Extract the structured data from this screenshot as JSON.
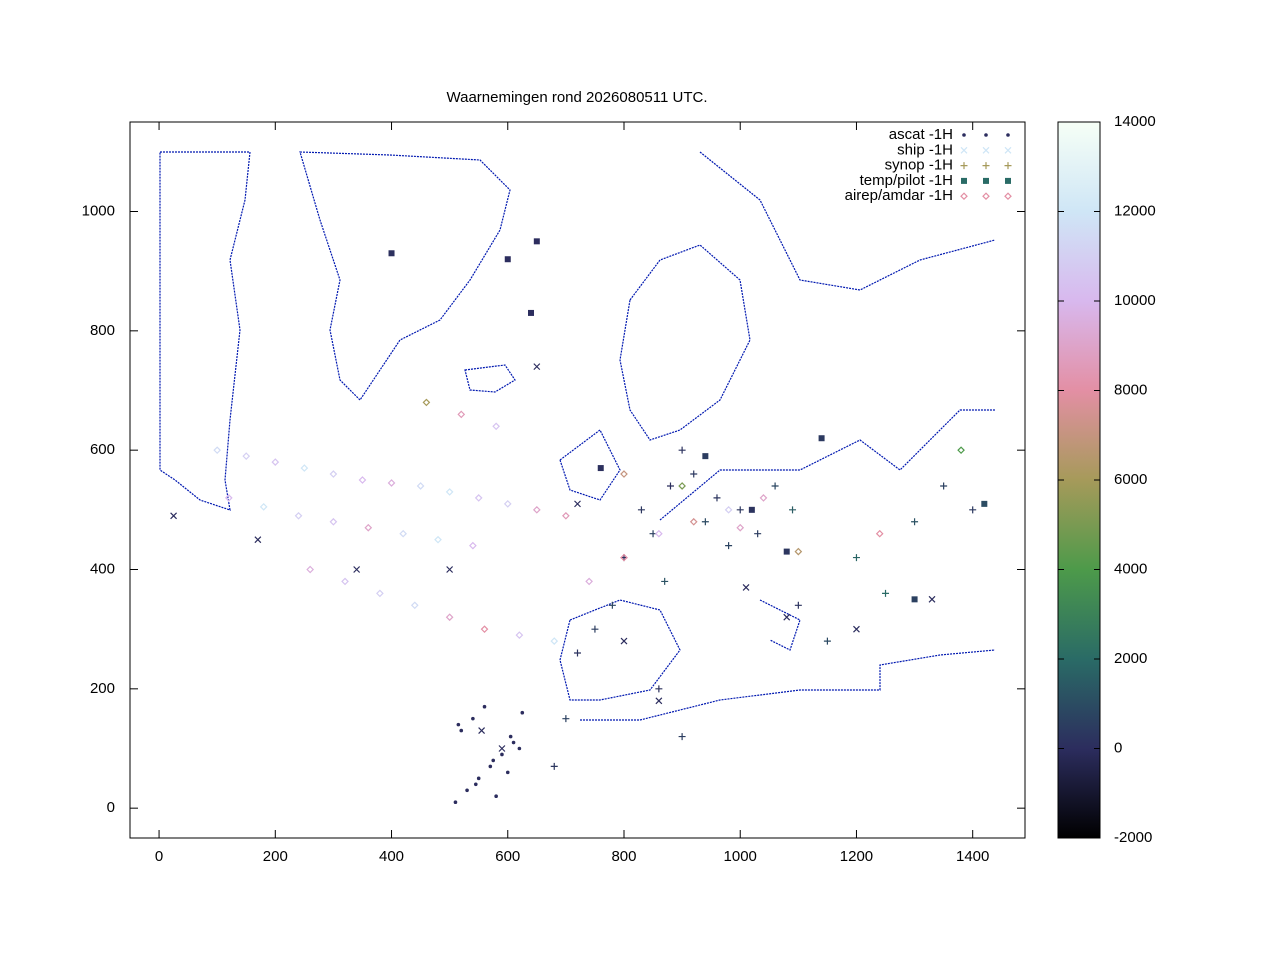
{
  "chart_data": {
    "type": "scatter",
    "title": "Waarnemingen rond 2026080511 UTC.",
    "xlim": [
      -50,
      1490
    ],
    "ylim": [
      -50,
      1150
    ],
    "xticks": [
      0,
      200,
      400,
      600,
      800,
      1000,
      1200,
      1400
    ],
    "yticks": [
      0,
      200,
      400,
      600,
      800,
      1000
    ],
    "cblim": [
      -2000,
      14000
    ],
    "cbticks": [
      -2000,
      0,
      2000,
      4000,
      6000,
      8000,
      10000,
      12000,
      14000
    ],
    "colormap": [
      "#000000",
      "#2c2d5e",
      "#2a6b66",
      "#4d9a4a",
      "#a69a5a",
      "#e38fa4",
      "#d8b8ee",
      "#cfe6f6",
      "#f6fff6"
    ],
    "legend": "upper right",
    "series": [
      {
        "name": "ascat -1H",
        "marker": "dot",
        "color": "#2c2d5e",
        "x": [
          510,
          530,
          550,
          570,
          590,
          610,
          520,
          540,
          560,
          580,
          600,
          620,
          515,
          545,
          575,
          605,
          625
        ],
        "y": [
          10,
          30,
          50,
          70,
          90,
          110,
          130,
          150,
          170,
          20,
          60,
          100,
          140,
          40,
          80,
          120,
          160
        ],
        "z": [
          0,
          0,
          0,
          0,
          0,
          0,
          0,
          0,
          0,
          0,
          0,
          0,
          0,
          0,
          0,
          0,
          0
        ]
      },
      {
        "name": "ship -1H",
        "marker": "cross",
        "color": "#cfe6f6",
        "x": [
          25,
          170,
          340,
          500,
          555,
          590,
          650,
          720,
          800,
          860,
          1010,
          1080,
          1200,
          1330
        ],
        "y": [
          490,
          450,
          400,
          400,
          130,
          100,
          740,
          510,
          280,
          180,
          370,
          320,
          300,
          350
        ],
        "z": [
          0,
          0,
          0,
          0,
          0,
          0,
          0,
          0,
          0,
          0,
          0,
          0,
          0,
          0
        ]
      },
      {
        "name": "synop -1H",
        "marker": "plus",
        "color": "#a69a5a",
        "x": [
          720,
          750,
          780,
          800,
          830,
          850,
          870,
          880,
          900,
          920,
          940,
          960,
          980,
          1000,
          1030,
          1060,
          1090,
          1100,
          1150,
          1200,
          1250,
          1300,
          1350,
          1400,
          680,
          700,
          860,
          900
        ],
        "y": [
          260,
          300,
          340,
          420,
          500,
          460,
          380,
          540,
          600,
          560,
          480,
          520,
          440,
          500,
          460,
          540,
          500,
          340,
          280,
          420,
          360,
          480,
          540,
          500,
          70,
          150,
          200,
          120
        ],
        "z": [
          200,
          500,
          800,
          100,
          300,
          600,
          1200,
          50,
          150,
          400,
          900,
          250,
          700,
          300,
          500,
          800,
          1500,
          200,
          900,
          1800,
          2000,
          1200,
          600,
          400,
          300,
          600,
          100,
          500
        ]
      },
      {
        "name": "temp/pilot -1H",
        "marker": "square",
        "color": "#2a6b66",
        "x": [
          400,
          640,
          650,
          940,
          1020,
          1080,
          1140,
          1420,
          600,
          760,
          1300
        ],
        "y": [
          930,
          830,
          950,
          590,
          500,
          430,
          620,
          510,
          920,
          570,
          350
        ],
        "z": [
          100,
          0,
          0,
          500,
          200,
          300,
          400,
          1000,
          0,
          100,
          600
        ]
      },
      {
        "name": "airep/amdar -1H",
        "marker": "diamond",
        "color": "#e38fa4",
        "x": [
          100,
          150,
          200,
          250,
          300,
          350,
          400,
          450,
          500,
          550,
          600,
          650,
          700,
          120,
          180,
          240,
          300,
          360,
          420,
          480,
          540,
          260,
          320,
          380,
          440,
          500,
          560,
          620,
          680,
          740,
          800,
          860,
          920,
          980,
          1040,
          460,
          520,
          580,
          800,
          900,
          1000,
          1100,
          1240,
          1380
        ],
        "y": [
          600,
          590,
          580,
          570,
          560,
          550,
          545,
          540,
          530,
          520,
          510,
          500,
          490,
          520,
          505,
          490,
          480,
          470,
          460,
          450,
          440,
          400,
          380,
          360,
          340,
          320,
          300,
          290,
          280,
          380,
          420,
          460,
          480,
          500,
          520,
          680,
          660,
          640,
          560,
          540,
          470,
          430,
          460,
          600
        ],
        "z": [
          11500,
          11000,
          10500,
          12000,
          11000,
          10000,
          9500,
          11500,
          12000,
          10500,
          11000,
          9000,
          8500,
          10000,
          12000,
          11000,
          10500,
          9000,
          11500,
          12000,
          10000,
          9500,
          10500,
          11000,
          11500,
          9000,
          8000,
          10500,
          12000,
          9500,
          8000,
          10000,
          7500,
          11000,
          9000,
          6000,
          8500,
          10500,
          7000,
          5000,
          9000,
          6500,
          8000,
          4000
        ]
      }
    ]
  }
}
